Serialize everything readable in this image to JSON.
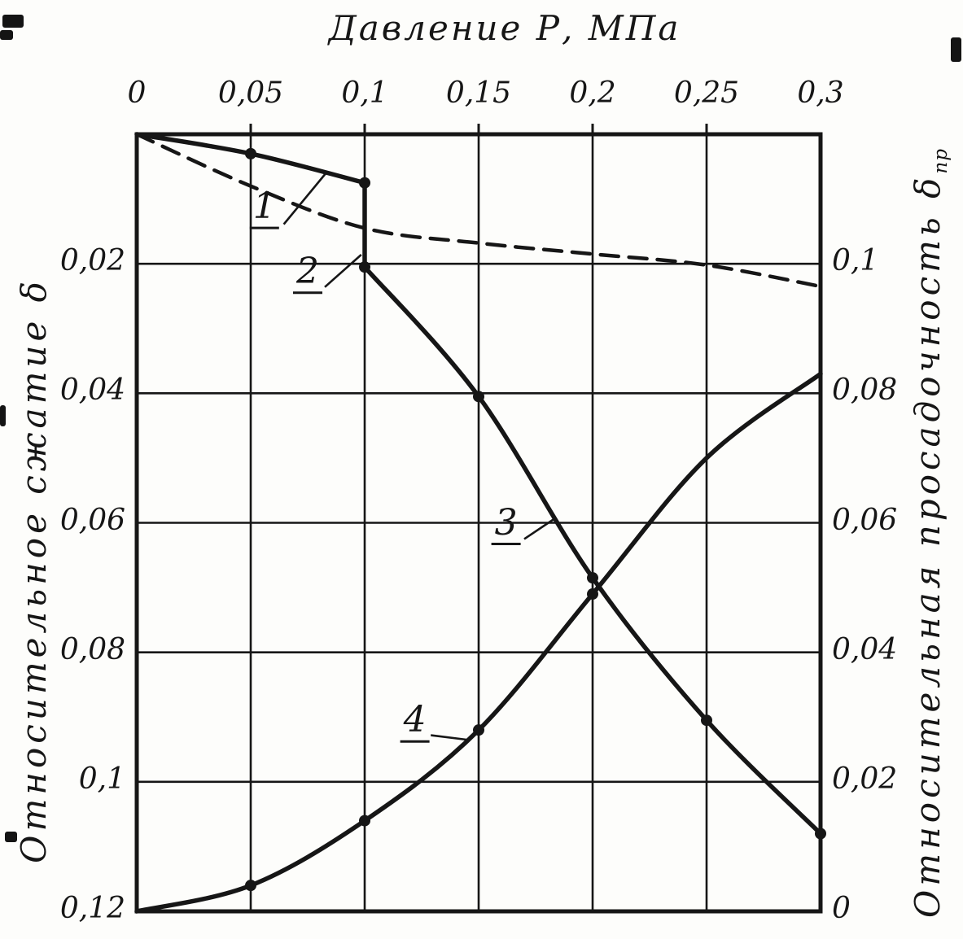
{
  "figure": {
    "background": "#fdfdfb",
    "ink": "#161616"
  },
  "chart_data": {
    "type": "line",
    "title": "Давление Р, МПа",
    "xlabel": "Давление Р, МПа",
    "ylabel_left": "Относительное сжатие δ",
    "ylabel_right": "Относительная просадочность δ",
    "ylabel_right_sub": "пр",
    "x_axis": {
      "min": 0,
      "max": 0.3,
      "position": "top",
      "tick_values": [
        0,
        0.05,
        0.1,
        0.15,
        0.2,
        0.25,
        0.3
      ],
      "tick_labels": [
        "0",
        "0,05",
        "0,1",
        "0,15",
        "0,2",
        "0,25",
        "0,3"
      ],
      "grid_values": [
        0.05,
        0.1,
        0.15,
        0.2,
        0.25
      ]
    },
    "y_axis_left": {
      "min": 0,
      "max": 0.12,
      "direction": "down",
      "tick_values": [
        0.02,
        0.04,
        0.06,
        0.08,
        0.1,
        0.12
      ],
      "tick_labels": [
        "0,02",
        "0,04",
        "0,06",
        "0,08",
        "0,1",
        "0,12"
      ],
      "grid_values": [
        0.02,
        0.04,
        0.06,
        0.08,
        0.1
      ]
    },
    "y_axis_right": {
      "min": 0,
      "max": 0.12,
      "direction": "up",
      "tick_values": [
        0.1,
        0.08,
        0.06,
        0.04,
        0.02,
        0
      ],
      "tick_labels": [
        "0,1",
        "0,08",
        "0,06",
        "0,04",
        "0,02",
        "0"
      ]
    },
    "grid": true,
    "series": [
      {
        "id": "curve-1-natural-compression",
        "label": "1",
        "axis": "left",
        "style": "solid",
        "smooth": true,
        "x": [
          0,
          0.05,
          0.1
        ],
        "y": [
          0,
          0.003,
          0.0075
        ],
        "markers": [
          [
            0.05,
            0.003
          ],
          [
            0.1,
            0.0075
          ]
        ]
      },
      {
        "id": "collapse-jump",
        "label": "",
        "axis": "left",
        "style": "solid",
        "smooth": false,
        "x": [
          0.1,
          0.1
        ],
        "y": [
          0.0075,
          0.0205
        ],
        "markers": [
          [
            0.1,
            0.0205
          ]
        ]
      },
      {
        "id": "curve-2-wetted-compression",
        "label": "2",
        "axis": "left",
        "style": "dashed",
        "smooth": true,
        "x": [
          0,
          0.05,
          0.1,
          0.15,
          0.2,
          0.25,
          0.3
        ],
        "y": [
          0,
          0.008,
          0.0145,
          0.0168,
          0.0185,
          0.0202,
          0.0235
        ],
        "markers": []
      },
      {
        "id": "curve-3-post-collapse-compression",
        "label": "3",
        "axis": "left",
        "style": "solid",
        "smooth": true,
        "x": [
          0.1,
          0.15,
          0.2,
          0.25,
          0.3
        ],
        "y": [
          0.0205,
          0.0405,
          0.0685,
          0.0905,
          0.108
        ],
        "markers": [
          [
            0.15,
            0.0405
          ],
          [
            0.2,
            0.0685
          ],
          [
            0.25,
            0.0905
          ],
          [
            0.3,
            0.108
          ]
        ]
      },
      {
        "id": "curve-4-relative-collapsibility",
        "label": "4",
        "axis": "right",
        "style": "solid",
        "smooth": true,
        "x": [
          0,
          0.05,
          0.1,
          0.15,
          0.2,
          0.25,
          0.3
        ],
        "y": [
          0,
          0.004,
          0.014,
          0.028,
          0.049,
          0.07,
          0.083
        ],
        "markers": [
          [
            0.05,
            0.004
          ],
          [
            0.1,
            0.014
          ],
          [
            0.15,
            0.028
          ],
          [
            0.2,
            0.049
          ]
        ]
      }
    ],
    "annotations": [
      {
        "text": "1",
        "P": 0.056,
        "delta": 0.0112,
        "leader": {
          "P1": 0.0645,
          "d1": 0.0139,
          "P2": 0.083,
          "d2": 0.006
        }
      },
      {
        "text": "2",
        "P": 0.075,
        "delta": 0.0212,
        "leader": {
          "P1": 0.0825,
          "d1": 0.0236,
          "P2": 0.0985,
          "d2": 0.0186
        }
      },
      {
        "text": "3",
        "P": 0.162,
        "delta": 0.06,
        "leader": {
          "P1": 0.17,
          "d1": 0.0625,
          "P2": 0.184,
          "d2": 0.0592
        }
      },
      {
        "text": "4",
        "P": 0.122,
        "delta": 0.0905,
        "leader": {
          "P1": 0.129,
          "d1": 0.0928,
          "P2": 0.145,
          "d2": 0.0935
        }
      }
    ]
  }
}
